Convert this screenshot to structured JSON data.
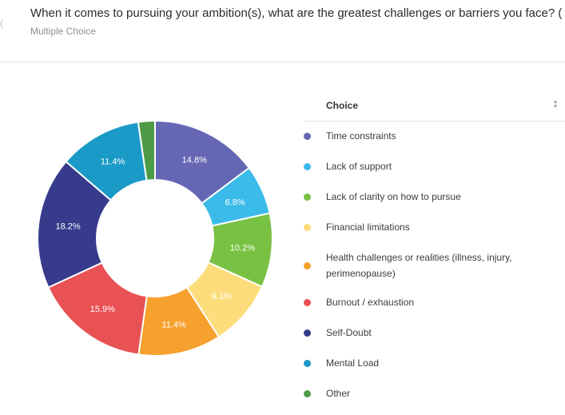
{
  "question": "When it comes to pursuing your ambition(s), what are the greatest challenges or barriers you face? (",
  "question_type": "Multiple Choice",
  "legend": {
    "header": "Choice",
    "sort_icon": "sort-icon"
  },
  "chart_data": {
    "type": "pie",
    "variant": "donut",
    "legend_placement": "right",
    "slices": [
      {
        "label": "Time constraints",
        "value": 14.8,
        "display": "14.8%",
        "color": "#6667b4"
      },
      {
        "label": "Lack of support",
        "value": 6.8,
        "display": "6.8%",
        "color": "#3bbbe9"
      },
      {
        "label": "Lack of clarity on how to pursue",
        "value": 10.2,
        "display": "10.2%",
        "color": "#79c143"
      },
      {
        "label": "Financial limitations",
        "value": 9.1,
        "display": "9.1%",
        "color": "#fddd7b"
      },
      {
        "label": "Health challenges or realities (illness, injury, perimenopause)",
        "value": 11.4,
        "display": "11.4%",
        "color": "#f6a12e"
      },
      {
        "label": "Burnout / exhaustion",
        "value": 15.9,
        "display": "15.9%",
        "color": "#e85254"
      },
      {
        "label": "Self-Doubt",
        "value": 18.2,
        "display": "18.2%",
        "color": "#363b8c"
      },
      {
        "label": "Mental Load",
        "value": 11.4,
        "display": "11.4%",
        "color": "#1b9ac7"
      },
      {
        "label": "Other",
        "value": 2.3,
        "display": "",
        "color": "#4e9b47"
      }
    ]
  }
}
